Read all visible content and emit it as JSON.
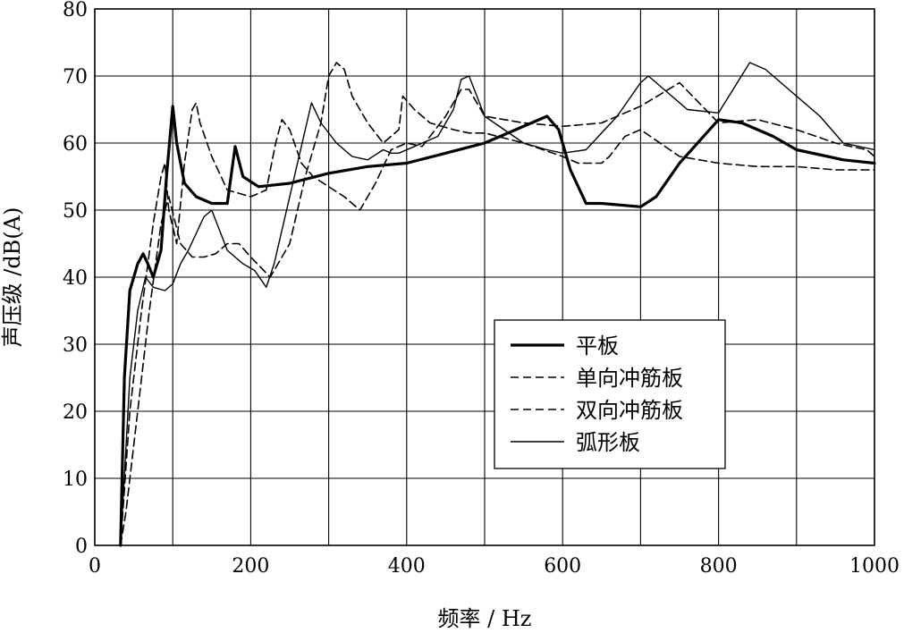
{
  "chart_data": {
    "type": "line",
    "title": "",
    "xlabel": "频率 / Hz",
    "ylabel": "声压级 /dB(A)",
    "xlim": [
      0,
      1000
    ],
    "ylim": [
      0,
      80
    ],
    "x_ticks": [
      0,
      100,
      200,
      300,
      400,
      500,
      600,
      700,
      800,
      900,
      1000
    ],
    "x_tick_labels": [
      "0",
      "",
      "200",
      "",
      "400",
      "",
      "600",
      "",
      "800",
      "",
      "1000"
    ],
    "y_ticks": [
      0,
      10,
      20,
      30,
      40,
      50,
      60,
      70,
      80
    ],
    "y_tick_labels": [
      "0",
      "10",
      "20",
      "30",
      "40",
      "50",
      "60",
      "70",
      "80"
    ],
    "grid": true,
    "legend_position": "lower-right",
    "series": [
      {
        "name": "平板",
        "style": "thick-solid",
        "x": [
          33,
          38,
          45,
          55,
          62,
          68,
          75,
          85,
          92,
          100,
          105,
          115,
          130,
          150,
          170,
          180,
          190,
          210,
          250,
          300,
          350,
          400,
          450,
          500,
          540,
          560,
          580,
          595,
          610,
          630,
          650,
          700,
          720,
          750,
          800,
          830,
          870,
          900,
          940,
          960,
          1000
        ],
        "y": [
          0,
          25,
          38,
          42,
          43.5,
          42,
          40,
          44,
          55,
          65.5,
          60,
          54,
          52,
          51,
          51,
          59.5,
          55,
          53.5,
          54,
          55.5,
          56.5,
          57,
          58.5,
          60,
          62,
          63,
          64,
          62,
          56,
          51,
          51,
          50.5,
          52,
          57,
          63.5,
          63,
          61,
          59,
          58,
          57.5,
          57
        ]
      },
      {
        "name": "单向冲筋板",
        "style": "dashed",
        "x": [
          33,
          45,
          60,
          75,
          85,
          90,
          95,
          105,
          115,
          125,
          130,
          135,
          150,
          170,
          200,
          220,
          232,
          240,
          250,
          265,
          280,
          300,
          320,
          340,
          360,
          380,
          400,
          420,
          450,
          470,
          480,
          500,
          550,
          600,
          650,
          700,
          750,
          800,
          850,
          900,
          950,
          970,
          990,
          1000
        ],
        "y": [
          0,
          20,
          35,
          48,
          55,
          57,
          50,
          45,
          57,
          65,
          66,
          63,
          58,
          53,
          52,
          53,
          60,
          63.5,
          62,
          57,
          55,
          53.5,
          52,
          50,
          54,
          59,
          60,
          59.5,
          64,
          68,
          68,
          64,
          63,
          62.5,
          63,
          65.5,
          69,
          63,
          63.5,
          62,
          60,
          59.5,
          59,
          58
        ]
      },
      {
        "name": "双向冲筋板",
        "style": "dashed",
        "x": [
          33,
          40,
          55,
          70,
          85,
          95,
          110,
          125,
          140,
          155,
          170,
          185,
          200,
          225,
          250,
          270,
          290,
          300,
          310,
          320,
          330,
          350,
          370,
          390,
          395,
          410,
          430,
          460,
          480,
          500,
          550,
          600,
          620,
          640,
          650,
          660,
          680,
          700,
          750,
          800,
          850,
          900,
          950,
          970,
          990,
          1000
        ],
        "y": [
          0,
          5,
          20,
          35,
          48,
          52,
          45,
          43,
          43,
          43.5,
          45,
          45,
          43,
          40,
          45,
          55,
          63,
          70,
          72,
          71,
          67,
          63,
          60,
          62,
          67,
          65,
          63,
          62,
          61.5,
          61.5,
          60,
          58,
          57,
          57,
          57,
          58,
          61,
          62,
          58,
          57,
          56.5,
          56.5,
          56,
          56,
          56,
          56
        ]
      },
      {
        "name": "弧形板",
        "style": "thin-solid",
        "x": [
          33,
          45,
          55,
          65,
          75,
          90,
          100,
          110,
          120,
          140,
          150,
          170,
          190,
          205,
          220,
          230,
          250,
          270,
          278,
          290,
          310,
          330,
          350,
          370,
          380,
          390,
          410,
          440,
          460,
          470,
          480,
          500,
          550,
          580,
          600,
          630,
          670,
          700,
          710,
          730,
          760,
          800,
          840,
          860,
          890,
          930,
          960,
          980,
          1000
        ],
        "y": [
          0,
          25,
          35,
          40,
          38.5,
          38,
          39,
          42,
          44,
          49,
          50,
          44,
          42,
          41,
          38.5,
          42,
          52,
          62,
          66,
          63,
          60,
          58,
          57.5,
          59,
          58.5,
          58.5,
          59.5,
          61,
          65,
          69.5,
          70,
          64,
          60,
          59,
          58.5,
          59,
          64,
          69,
          70,
          68,
          65,
          64.5,
          72,
          71,
          68,
          64,
          60,
          59.5,
          59
        ]
      }
    ]
  }
}
